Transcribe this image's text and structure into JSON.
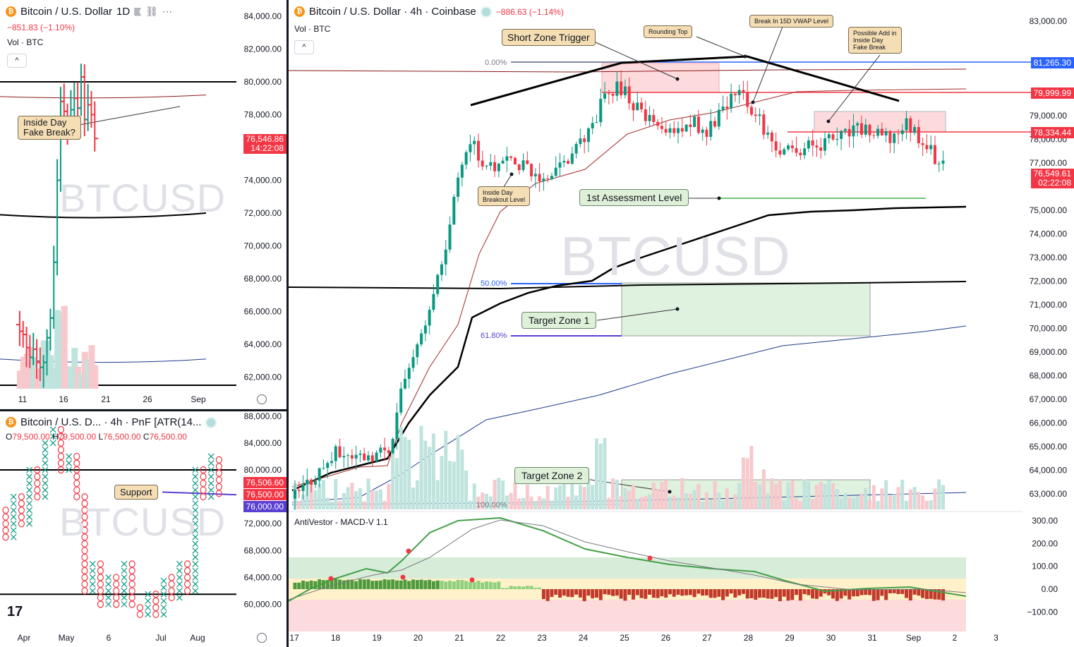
{
  "panels": {
    "daily": {
      "title": "Bitcoin / U.S. Dollar",
      "interval": "1D",
      "change": "−851.83 (−1.10%)",
      "vol_label": "Vol · BTC",
      "watermark": "BTCUSD",
      "price_label": "76,546.86",
      "countdown": "14:22:08",
      "annotation": "Inside Day\nFake Break?",
      "y_ticks": [
        "84,000.00",
        "82,000.00",
        "80,000.00",
        "78,000.00",
        "76,000.00",
        "74,000.00",
        "72,000.00",
        "70,000.00",
        "68,000.00",
        "66,000.00",
        "64,000.00",
        "62,000.00"
      ],
      "x_ticks": [
        "11",
        "16",
        "21",
        "26",
        "Sep"
      ]
    },
    "pnf": {
      "title": "Bitcoin / U.S. D... · 4h · PnF [ATR(14...",
      "ohlc": {
        "o_label": "O",
        "o": "79,500.00",
        "h_label": "H",
        "h": "79,500.00",
        "l_label": "L",
        "l": "76,500.00",
        "c_label": "C",
        "c": "76,500.00"
      },
      "watermark": "BTCUSD",
      "annotation": "Support",
      "price_labels": [
        "76,506.60",
        "76,500.00",
        "76,000.00"
      ],
      "y_ticks": [
        "88,000.00",
        "84,000.00",
        "80,000.00",
        "76,000.00",
        "72,000.00",
        "68,000.00",
        "64,000.00",
        "60,000.00"
      ],
      "x_ticks": [
        "Apr",
        "May",
        "6",
        "Jul",
        "Aug"
      ]
    },
    "h4": {
      "title": "Bitcoin / U.S. Dollar · 4h · Coinbase",
      "change": "−886.63 (−1.14%)",
      "vol_label": "Vol · BTC",
      "watermark": "BTCUSD",
      "indicator": "AntiVestor - MACD-V 1.1",
      "annotations": {
        "short_zone": "Short Zone Trigger",
        "rounding_top": "Rounding Top",
        "vwap": "Break In 15D VWAP Level",
        "possible_add": "Possible Add in\nInside Day\nFake Break",
        "inside_day": "Inside Day\nBreakout Level",
        "assessment": "1st Assessment Level",
        "target1": "Target Zone 1",
        "target2": "Target Zone 2"
      },
      "fib_levels": [
        "0.00%",
        "50.00%",
        "61.80%",
        "100.00%"
      ],
      "price_labels": [
        "81,265.30",
        "79,999.99",
        "78,334.44",
        "76,549.61"
      ],
      "countdown": "02:22:08",
      "y_ticks_upper": [
        "83,000.00",
        "79,000.00",
        "78,000.00",
        "77,000.00",
        "75,000.00",
        "74,000.00",
        "73,000.00",
        "72,000.00",
        "71,000.00",
        "70,000.00",
        "69,000.00",
        "68,000.00",
        "67,000.00",
        "66,000.00",
        "65,000.00",
        "64,000.00",
        "63,000.00"
      ],
      "y_ticks_macd": [
        "300.00",
        "200.00",
        "100.00",
        "0.00",
        "−100.00"
      ],
      "x_ticks": [
        "17",
        "18",
        "19",
        "20",
        "21",
        "22",
        "23",
        "24",
        "25",
        "26",
        "27",
        "28",
        "29",
        "30",
        "31",
        "Sep",
        "2",
        "3"
      ]
    }
  },
  "colors": {
    "up": "#089981",
    "down": "#f23645",
    "brand": "#f7931a",
    "blue": "#2962ff"
  },
  "chart_data": [
    {
      "type": "line",
      "title": "Bitcoin / U.S. Dollar · 1D",
      "x": [
        "11",
        "16",
        "21",
        "26",
        "Sep"
      ],
      "series": [
        {
          "values": [
            64800,
            62700,
            78600,
            79200,
            76547
          ]
        }
      ],
      "ylim": [
        61000,
        85000
      ]
    },
    {
      "type": "scatter",
      "title": "Bitcoin / U.S. D... · 4h · PnF",
      "x": [
        "Apr",
        "May",
        "6",
        "Jul",
        "Aug"
      ],
      "series": [
        {
          "values": [
            76000,
            86000,
            62000,
            62000,
            80000
          ]
        }
      ],
      "ylim": [
        58000,
        89000
      ]
    },
    {
      "type": "line",
      "title": "Bitcoin / U.S. Dollar · 4h · Coinbase",
      "x": [
        "17",
        "18",
        "19",
        "20",
        "21",
        "22",
        "23",
        "24",
        "25",
        "26",
        "27",
        "28",
        "29",
        "30",
        "31",
        "Sep",
        "2"
      ],
      "series": [
        {
          "values": [
            62900,
            64700,
            64600,
            69500,
            77000,
            77200,
            76300,
            77900,
            80000,
            78500,
            78300,
            80500,
            77400,
            78000,
            78200,
            78400,
            76550
          ]
        }
      ],
      "ylim": [
        62500,
        83500
      ]
    }
  ]
}
